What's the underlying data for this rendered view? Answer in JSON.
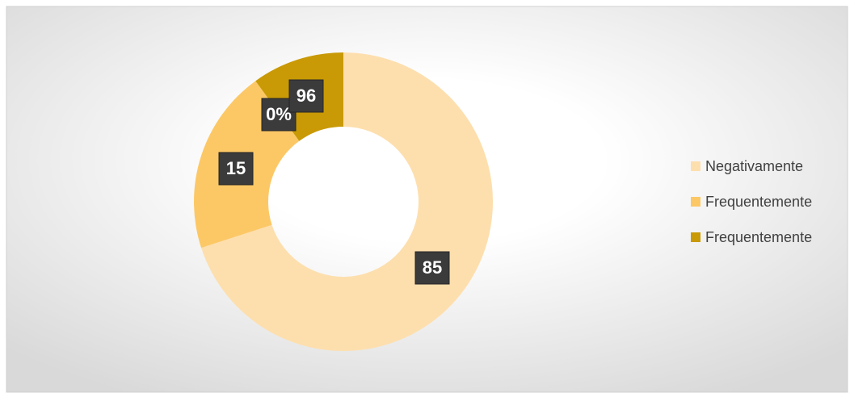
{
  "chart_data": {
    "type": "donut",
    "categories": [
      "Negativamente",
      "Frequentemente",
      "Frequentemente"
    ],
    "values": [
      70,
      20,
      10
    ],
    "colors": [
      "#fddfae",
      "#fcc866",
      "#c99a06"
    ],
    "annotations": [
      "85",
      "15",
      "0%",
      "96"
    ],
    "legend": "right"
  }
}
